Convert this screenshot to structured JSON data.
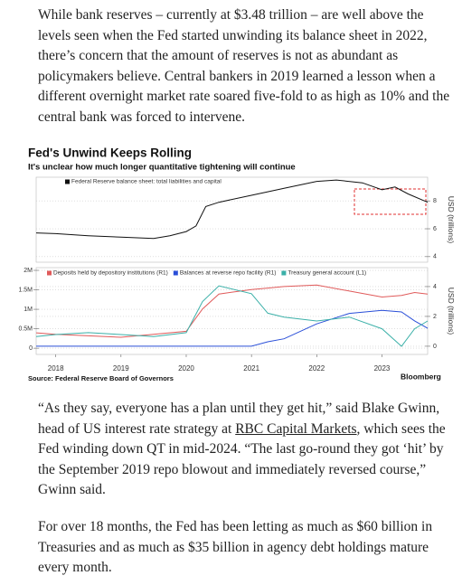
{
  "paragraphs": [
    "While bank reserves – currently at $3.48 trillion – are well above the levels seen when the Fed started unwinding its balance sheet in 2022, there’s concern that the amount of reserves is not as abundant as policymakers believe. Central bankers in 2019 learned a lesson when a different overnight market rate soared five-fold to as high as 10% and the central bank was forced to intervene.",
    {
      "before": "“As they say, everyone has a plan until they get hit,” said Blake Gwinn, head of US interest rate strategy at ",
      "link": "RBC Capital Markets",
      "after": ", which sees the Fed winding down QT in mid-2024. “The last go-round they got ‘hit’ by the September 2019 repo blowout and immediately reversed course,” Gwinn said."
    },
    "For over 18 months, the Fed has been letting as much as $60 billion in Treasuries and as much as $35 billion in agency debt holdings mature every month."
  ],
  "chart_data": [
    {
      "type": "line",
      "title": "Fed's Unwind Keeps Rolling",
      "subtitle": "It's unclear how much longer quantitative tightening will continue",
      "x": [
        2017.7,
        2018,
        2018.5,
        2019,
        2019.5,
        2019.75,
        2020,
        2020.15,
        2020.3,
        2020.5,
        2021,
        2021.5,
        2022,
        2022.3,
        2022.7,
        2023,
        2023.2,
        2023.4,
        2023.7
      ],
      "xlim": [
        2017.7,
        2023.7
      ],
      "series": [
        {
          "name": "Federal Reserve balance sheet: total liabilities and capital",
          "color": "#111111",
          "values": [
            5.7,
            5.65,
            5.5,
            5.4,
            5.3,
            5.5,
            5.8,
            6.2,
            7.6,
            7.9,
            8.4,
            8.9,
            9.4,
            9.5,
            9.3,
            8.8,
            9.0,
            8.5,
            7.9
          ]
        }
      ],
      "ylim": [
        3.6,
        9.7
      ],
      "yticks": [
        4,
        6,
        8
      ],
      "y_axis_side": "right",
      "ylabel": "USD (trillions)",
      "grid": true
    },
    {
      "type": "line",
      "x": [
        2017.7,
        2018,
        2018.5,
        2019,
        2019.5,
        2020,
        2020.25,
        2020.5,
        2021,
        2021.25,
        2021.5,
        2022,
        2022.5,
        2023,
        2023.3,
        2023.5,
        2023.7
      ],
      "xlim": [
        2017.7,
        2023.7
      ],
      "xticks": [
        2018,
        2019,
        2020,
        2021,
        2022,
        2023
      ],
      "series": [
        {
          "name": "Deposits held by depository institutions (R1)",
          "color": "#e05a5a",
          "axis": "y2",
          "values": [
            0.9,
            0.8,
            0.7,
            0.6,
            0.8,
            1.0,
            2.5,
            3.5,
            3.8,
            3.9,
            4.0,
            4.1,
            3.7,
            3.3,
            3.4,
            3.6,
            3.5
          ]
        },
        {
          "name": "Balances at reverse repo facility (R1)",
          "color": "#2a4fd8",
          "axis": "y2",
          "values": [
            0,
            0,
            0,
            0,
            0,
            0,
            0,
            0,
            0,
            0.3,
            0.5,
            1.5,
            2.2,
            2.4,
            2.3,
            1.7,
            1.2
          ]
        },
        {
          "name": "Treasury general account (L1)",
          "color": "#3bb0a8",
          "values": [
            300000,
            350000,
            400000,
            350000,
            300000,
            400000,
            1200000,
            1600000,
            1400000,
            900000,
            800000,
            700000,
            800000,
            500000,
            50000,
            500000,
            700000
          ]
        }
      ],
      "ylim": [
        -160000,
        2070000
      ],
      "yticks": [
        0,
        {
          "value": 500000,
          "label": "0.5M"
        },
        {
          "value": 1000000,
          "label": "1M"
        },
        {
          "value": 1500000,
          "label": "1.5M"
        },
        {
          "value": 2000000,
          "label": "2M"
        }
      ],
      "y2lim": [
        -0.55,
        5.27
      ],
      "y2ticks": [
        0,
        2,
        4
      ],
      "y2label": "USD (trillions)",
      "grid": true,
      "source": "Source: Federal Reserve Board of Governors",
      "brand": "Bloomberg"
    }
  ]
}
